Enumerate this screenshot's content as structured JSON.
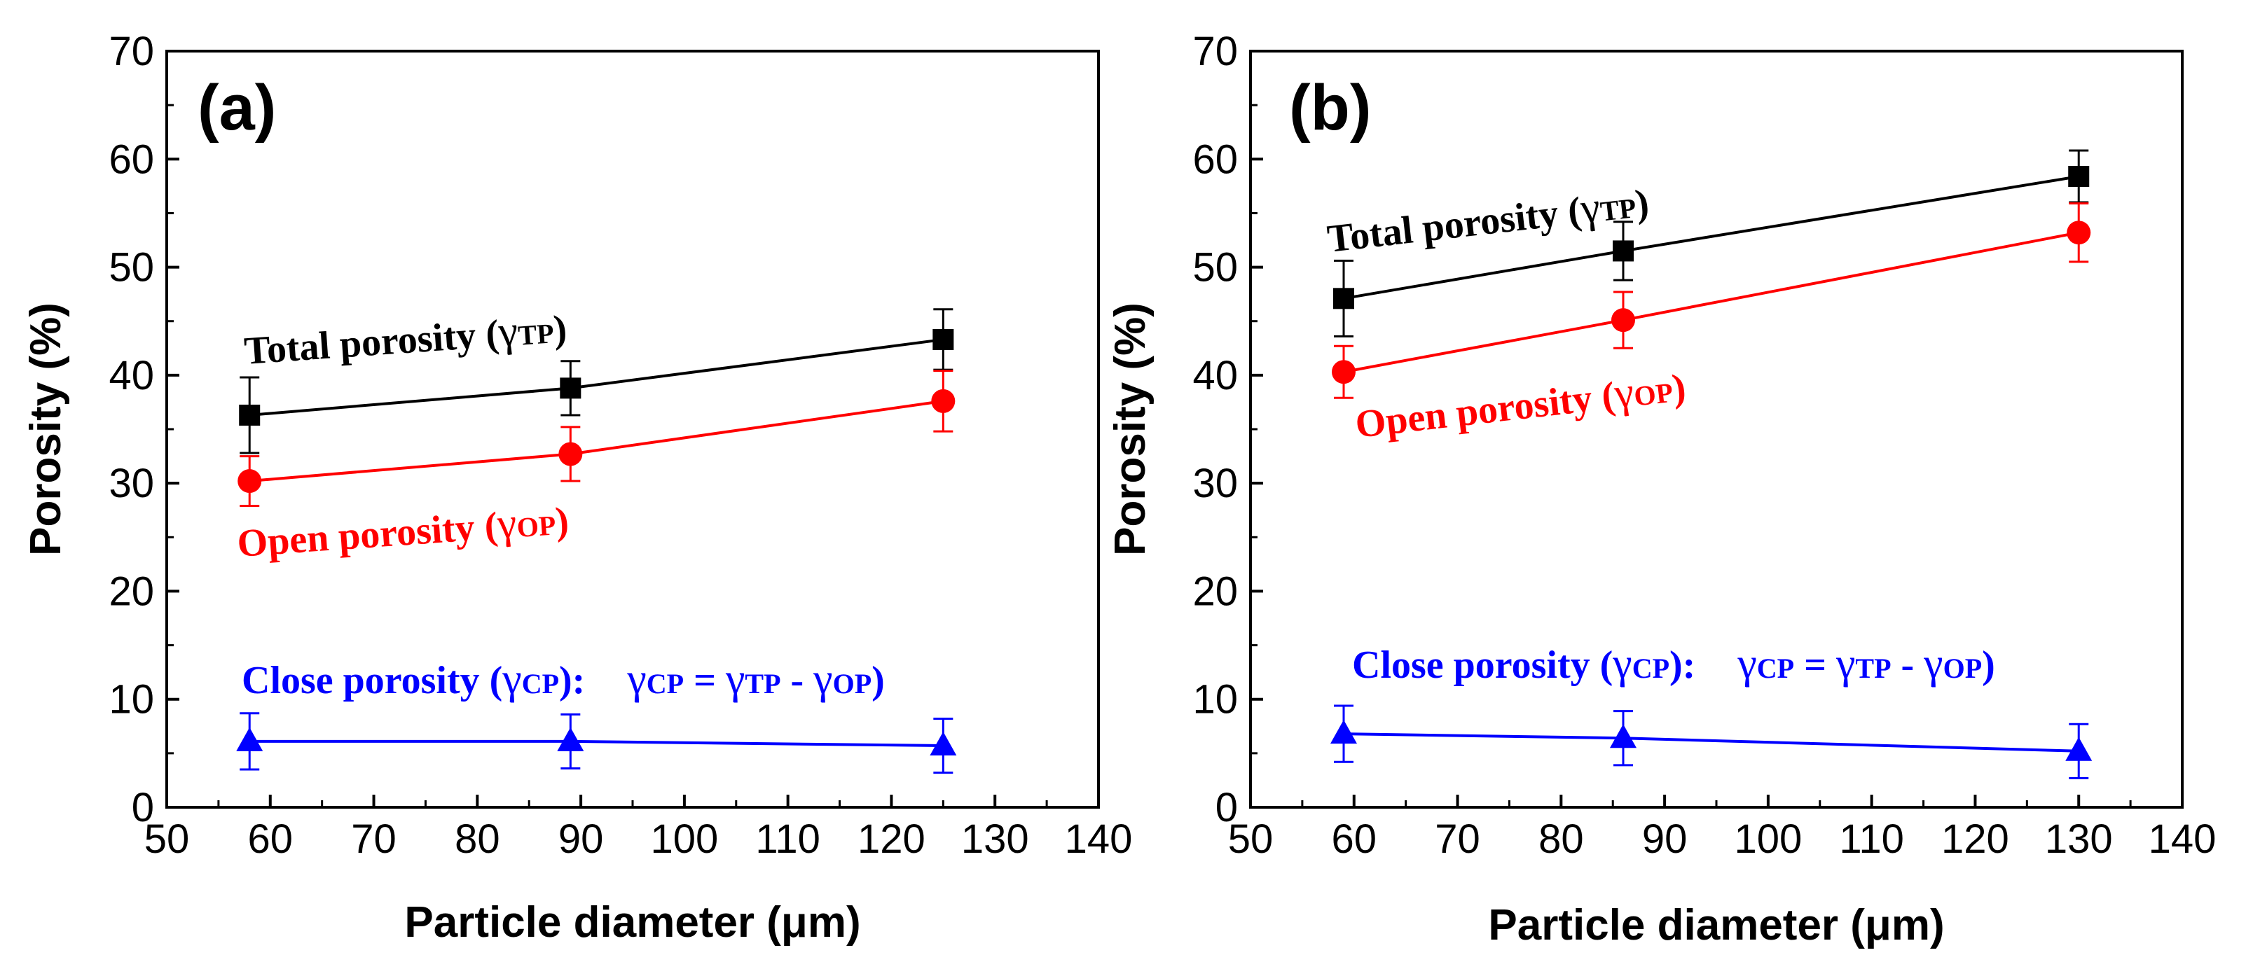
{
  "chart_data": [
    {
      "type": "line",
      "panel_label": "(a)",
      "xlabel": "Particle diameter (μm)",
      "ylabel": "Porosity (%)",
      "xlim": [
        50,
        140
      ],
      "ylim": [
        0,
        70
      ],
      "x_ticks": [
        "50",
        "60",
        "70",
        "80",
        "90",
        "100",
        "110",
        "120",
        "130",
        "140"
      ],
      "y_ticks": [
        "0",
        "10",
        "20",
        "30",
        "40",
        "50",
        "60",
        "70"
      ],
      "x": [
        58,
        89,
        125
      ],
      "series": [
        {
          "name": "Total porosity",
          "color": "#000000",
          "marker": "square",
          "values": [
            36.3,
            38.8,
            43.3
          ],
          "errors": [
            3.5,
            2.5,
            2.8
          ]
        },
        {
          "name": "Open porosity",
          "color": "#ff0000",
          "marker": "circle",
          "values": [
            30.2,
            32.7,
            37.6
          ],
          "errors": [
            2.3,
            2.5,
            2.8
          ]
        },
        {
          "name": "Close porosity",
          "color": "#0000ff",
          "marker": "triangle",
          "values": [
            6.1,
            6.1,
            5.7
          ],
          "errors": [
            2.6,
            2.5,
            2.5
          ]
        }
      ],
      "annotations": {
        "total": {
          "text": "Total porosity (",
          "sym": "γ",
          "sub": "TP",
          "close": ")"
        },
        "open": {
          "text": "Open porosity (",
          "sym": "γ",
          "sub": "OP",
          "close": ")"
        },
        "close": {
          "text": "Close porosity (",
          "sym": "γ",
          "sub": "CP",
          "close": "):",
          "eq_sym1": "γ",
          "eq_sub1": "CP",
          "eq_mid1": " = ",
          "eq_sym2": "γ",
          "eq_sub2": "TP",
          "eq_mid2": " - ",
          "eq_sym3": "γ",
          "eq_sub3": "OP",
          "eq_close": ")"
        }
      }
    },
    {
      "type": "line",
      "panel_label": "(b)",
      "xlabel": "Particle diameter (μm)",
      "ylabel": "Porosity (%)",
      "xlim": [
        50,
        140
      ],
      "ylim": [
        0,
        70
      ],
      "x_ticks": [
        "50",
        "60",
        "70",
        "80",
        "90",
        "100",
        "110",
        "120",
        "130",
        "140"
      ],
      "y_ticks": [
        "0",
        "10",
        "20",
        "30",
        "40",
        "50",
        "60",
        "70"
      ],
      "x": [
        59,
        86,
        130
      ],
      "series": [
        {
          "name": "Total porosity",
          "color": "#000000",
          "marker": "square",
          "values": [
            47.1,
            51.5,
            58.4
          ],
          "errors": [
            3.5,
            2.7,
            2.4
          ]
        },
        {
          "name": "Open porosity",
          "color": "#ff0000",
          "marker": "circle",
          "values": [
            40.3,
            45.1,
            53.2
          ],
          "errors": [
            2.4,
            2.6,
            2.7
          ]
        },
        {
          "name": "Close porosity",
          "color": "#0000ff",
          "marker": "triangle",
          "values": [
            6.8,
            6.4,
            5.2
          ],
          "errors": [
            2.6,
            2.5,
            2.5
          ]
        }
      ],
      "annotations": {
        "total": {
          "text": "Total porosity (",
          "sym": "γ",
          "sub": "TP",
          "close": ")"
        },
        "open": {
          "text": "Open porosity (",
          "sym": "γ",
          "sub": "OP",
          "close": ")"
        },
        "close": {
          "text": "Close porosity (",
          "sym": "γ",
          "sub": "CP",
          "close": "):",
          "eq_sym1": "γ",
          "eq_sub1": "CP",
          "eq_mid1": " = ",
          "eq_sym2": "γ",
          "eq_sub2": "TP",
          "eq_mid2": " - ",
          "eq_sym3": "γ",
          "eq_sub3": "OP",
          "eq_close": ")"
        }
      }
    }
  ]
}
